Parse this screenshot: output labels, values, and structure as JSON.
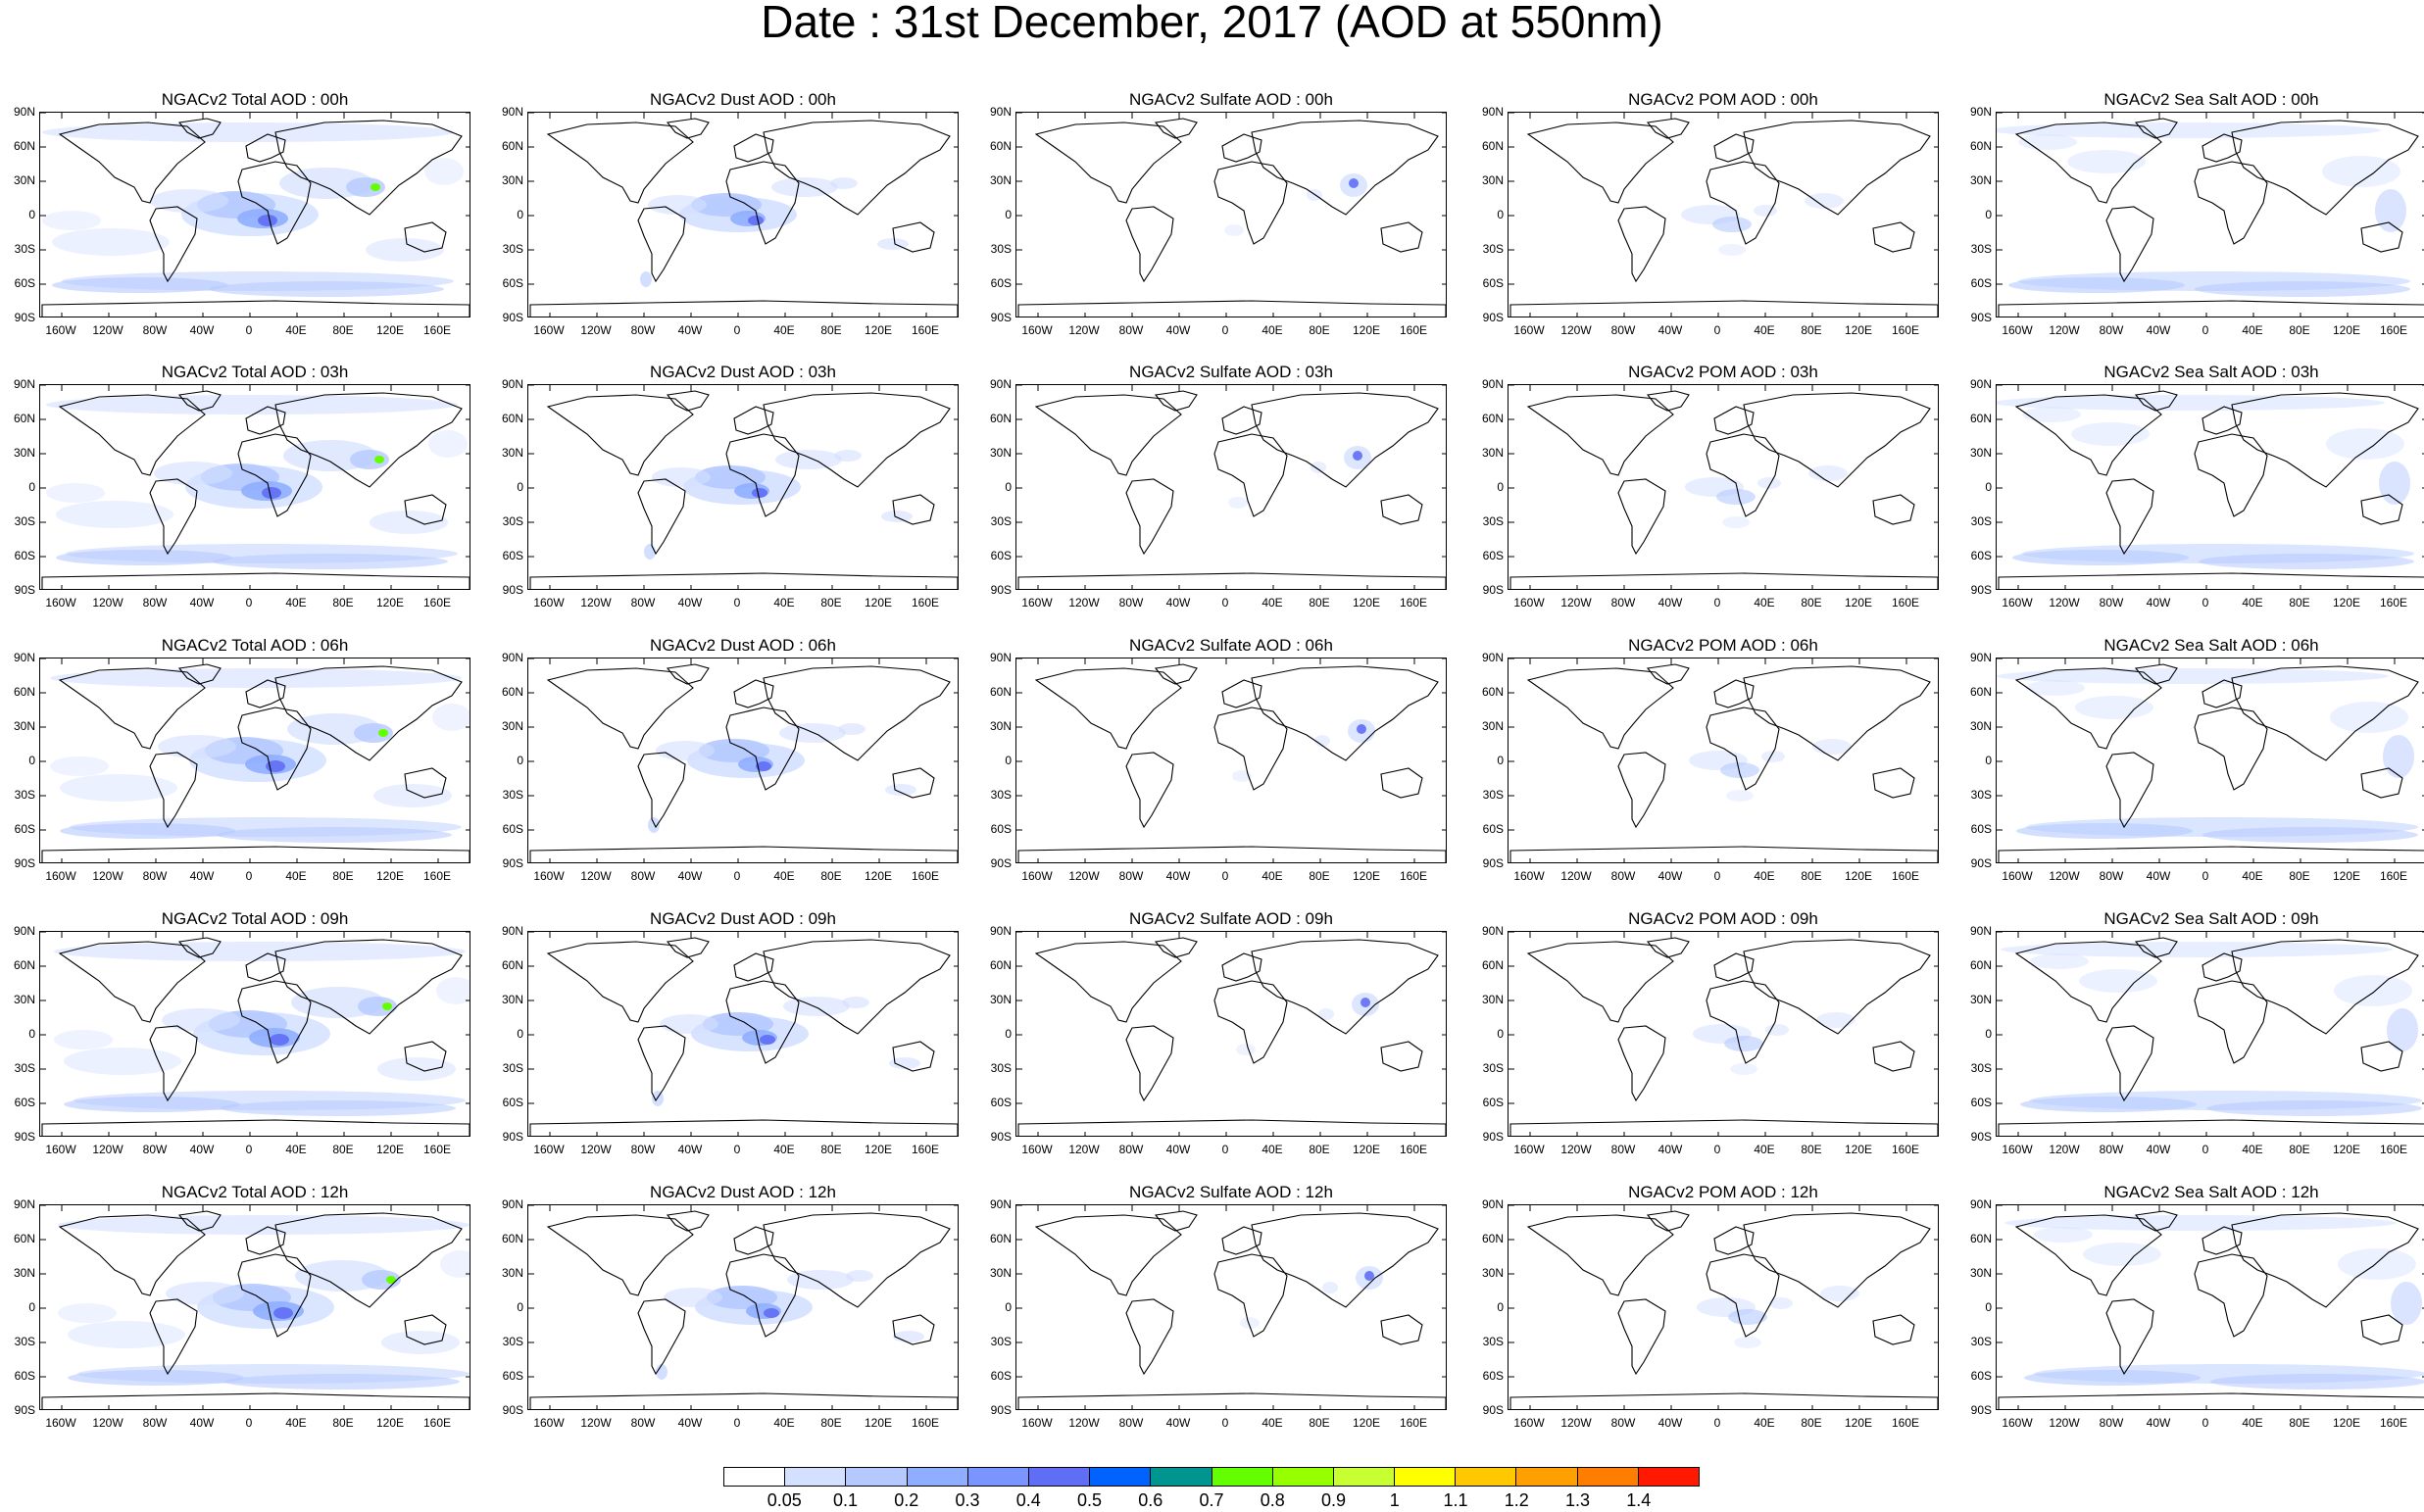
{
  "title": "Date : 31st December, 2017 (AOD at 550nm)",
  "lat_labels": [
    "90N",
    "60N",
    "30N",
    "0",
    "30S",
    "60S",
    "90S"
  ],
  "lon_labels": [
    "160W",
    "120W",
    "80W",
    "40W",
    "0",
    "40E",
    "80E",
    "120E",
    "160E"
  ],
  "panel_titles": [
    [
      "NGACv2 Total AOD : 00h",
      "NGACv2 Dust AOD : 00h",
      "NGACv2 Sulfate AOD : 00h",
      "NGACv2 POM AOD : 00h",
      "NGACv2 Sea Salt AOD : 00h"
    ],
    [
      "NGACv2 Total AOD : 03h",
      "NGACv2 Dust AOD : 03h",
      "NGACv2 Sulfate AOD : 03h",
      "NGACv2 POM AOD : 03h",
      "NGACv2 Sea Salt AOD : 03h"
    ],
    [
      "NGACv2 Total AOD : 06h",
      "NGACv2 Dust AOD : 06h",
      "NGACv2 Sulfate AOD : 06h",
      "NGACv2 POM AOD : 06h",
      "NGACv2 Sea Salt AOD : 06h"
    ],
    [
      "NGACv2 Total AOD : 09h",
      "NGACv2 Dust AOD : 09h",
      "NGACv2 Sulfate AOD : 09h",
      "NGACv2 POM AOD : 09h",
      "NGACv2 Sea Salt  AOD : 09h"
    ],
    [
      "NGACv2 Total AOD  : 12h",
      "NGACv2 Dust AOD : 12h",
      "NGACv2 Sulfate AOD : 12h",
      "NGACv2 POM  AOD : 12h",
      "NGACv2 Sea Salt  AOD : 12h"
    ]
  ],
  "colorbar": {
    "labels": [
      "0.05",
      "0.1",
      "0.2",
      "0.3",
      "0.4",
      "0.5",
      "0.6",
      "0.7",
      "0.8",
      "0.9",
      "1",
      "1.1",
      "1.2",
      "1.3",
      "1.4"
    ],
    "colors": [
      "#ffffff",
      "#d4e0ff",
      "#b5c9ff",
      "#8faeff",
      "#7a95ff",
      "#5f6ef5",
      "#0063ff",
      "#00968f",
      "#63ff00",
      "#96ff00",
      "#c8ff33",
      "#ffff00",
      "#ffc800",
      "#ffa000",
      "#ff7d00",
      "#ff1900"
    ]
  }
}
